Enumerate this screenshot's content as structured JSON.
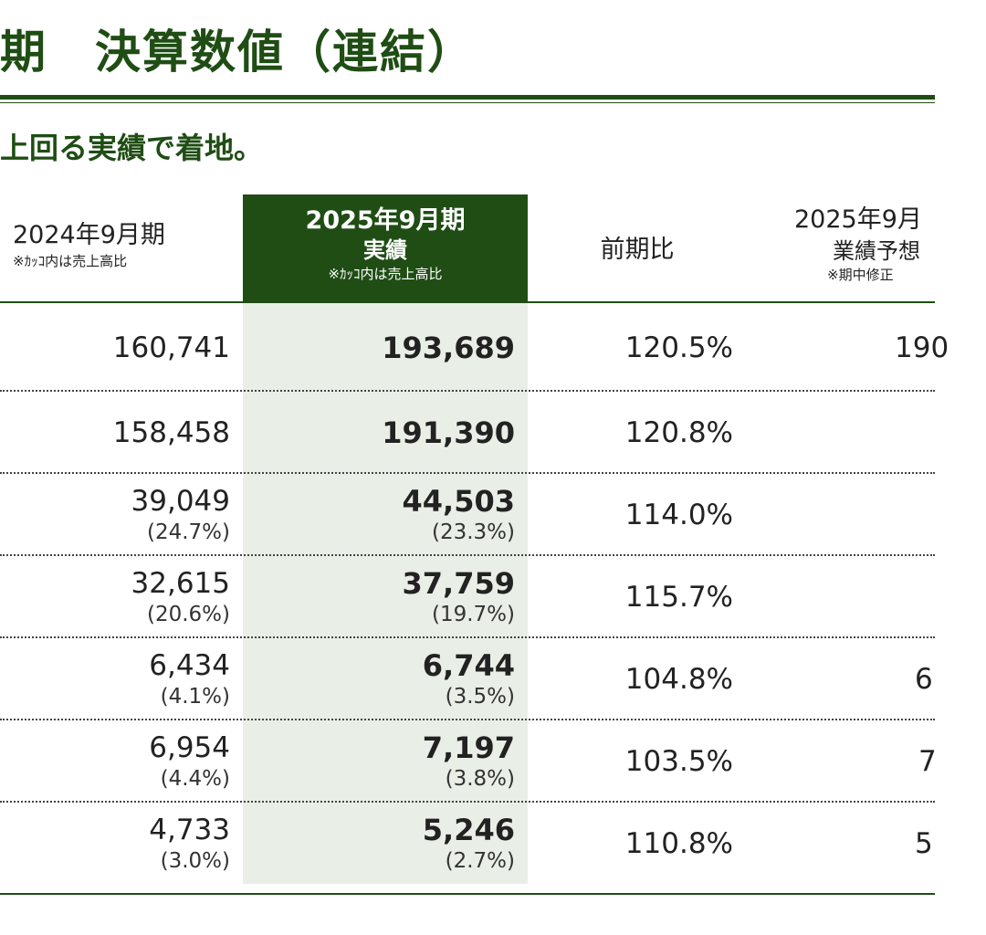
{
  "title": "期　決算数値（連結）",
  "subtitle": "上回る実績で着地。",
  "header": {
    "prev_year": "2024年9月期",
    "prev_note": "※ｶｯｺ内は売上高比",
    "cur_year": "2025年9月期",
    "cur_sub": "実績",
    "cur_note": "※ｶｯｺ内は売上高比",
    "ratio": "前期比",
    "fc_year": "2025年9月",
    "fc_sub": "業績予想",
    "fc_note": "※期中修正"
  },
  "rows": [
    {
      "prev": "160,741",
      "prev_pct": "",
      "cur": "193,689",
      "cur_pct": "",
      "ratio": "120.5%",
      "fc": "190"
    },
    {
      "prev": "158,458",
      "prev_pct": "",
      "cur": "191,390",
      "cur_pct": "",
      "ratio": "120.8%",
      "fc": ""
    },
    {
      "prev": "39,049",
      "prev_pct": "(24.7%)",
      "cur": "44,503",
      "cur_pct": "(23.3%)",
      "ratio": "114.0%",
      "fc": ""
    },
    {
      "prev": "32,615",
      "prev_pct": "(20.6%)",
      "cur": "37,759",
      "cur_pct": "(19.7%)",
      "ratio": "115.7%",
      "fc": ""
    },
    {
      "prev": "6,434",
      "prev_pct": "(4.1%)",
      "cur": "6,744",
      "cur_pct": "(3.5%)",
      "ratio": "104.8%",
      "fc": "6"
    },
    {
      "prev": "6,954",
      "prev_pct": "(4.4%)",
      "cur": "7,197",
      "cur_pct": "(3.8%)",
      "ratio": "103.5%",
      "fc": "7"
    },
    {
      "prev": "4,733",
      "prev_pct": "(3.0%)",
      "cur": "5,246",
      "cur_pct": "(2.7%)",
      "ratio": "110.8%",
      "fc": "5"
    }
  ],
  "colors": {
    "brand_green": "#1f4d14",
    "highlight_bg": "#e9eee6"
  }
}
